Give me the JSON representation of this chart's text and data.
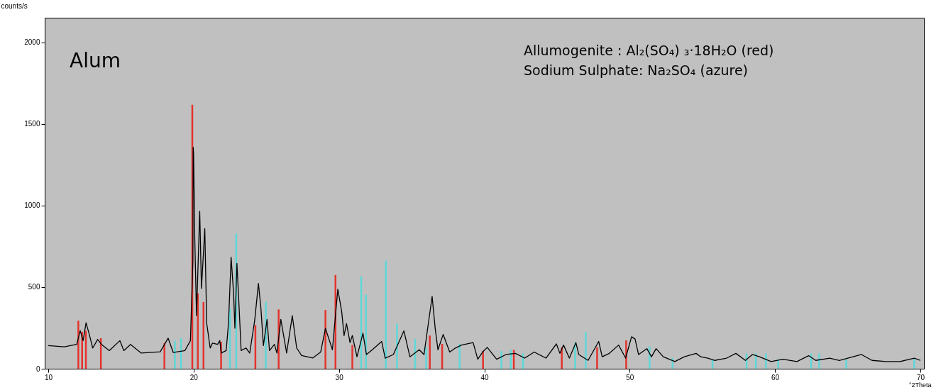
{
  "chart_data": {
    "type": "line",
    "xlabel": "°2Theta",
    "ylabel": "counts/s",
    "xlim": [
      10,
      70
    ],
    "ylim": [
      0,
      2150
    ],
    "xticks": [
      10,
      20,
      30,
      40,
      50,
      60,
      70
    ],
    "yticks": [
      0,
      500,
      1000,
      1500,
      2000
    ],
    "grid": false,
    "annotations": [
      "Alum",
      "Allumogenite : Al₂(SO₄) ₃·18H₂O    (red)",
      "Sodium Sulphate: Na₂SO₄    (azure)"
    ],
    "series": [
      {
        "type": "bar",
        "color": "#e5322c",
        "x": [
          12.07,
          12.33,
          12.59,
          13.62,
          17.99,
          19.91,
          20.29,
          20.68,
          21.89,
          24.25,
          25.85,
          29.07,
          29.76,
          30.92,
          36.25,
          37.1,
          39.91,
          42.03,
          45.33,
          47.76,
          49.76
        ],
        "values": [
          294,
          226,
          233,
          187,
          157,
          1617,
          462,
          409,
          165,
          267,
          363,
          360,
          574,
          145,
          203,
          152,
          109,
          116,
          131,
          131,
          174
        ]
      },
      {
        "type": "bar",
        "color": "#5ed8d8",
        "x": [
          18.71,
          19.13,
          22.5,
          22.93,
          24.97,
          31.53,
          31.86,
          33.23,
          33.99,
          35.24,
          36.0,
          38.3,
          41.17,
          41.82,
          42.66,
          46.25,
          46.98,
          51.37,
          52.95,
          55.7,
          58.04,
          58.68,
          59.38,
          60.22,
          62.48,
          63.04,
          64.9,
          69.58
        ],
        "values": [
          172,
          187,
          370,
          828,
          409,
          566,
          453,
          661,
          276,
          182,
          131,
          152,
          109,
          116,
          94,
          160,
          225,
          138,
          65,
          58,
          94,
          94,
          94,
          58,
          94,
          94,
          58,
          65
        ]
      },
      {
        "color": "#000000",
        "x": [
          10,
          11.1,
          11.96,
          12.2,
          12.4,
          12.6,
          12.8,
          13.06,
          13.4,
          13.66,
          14.2,
          14.93,
          15.2,
          15.66,
          16.4,
          17.7,
          18.25,
          18.6,
          19.4,
          19.78,
          19.95,
          19.97,
          20.0,
          20.08,
          20.2,
          20.42,
          20.54,
          20.77,
          20.9,
          21.14,
          21.3,
          21.65,
          21.8,
          21.9,
          22.24,
          22.4,
          22.58,
          22.75,
          22.84,
          22.98,
          23.1,
          23.27,
          23.6,
          23.86,
          24.2,
          24.46,
          24.63,
          24.8,
          24.97,
          25.05,
          25.22,
          25.56,
          25.73,
          26.0,
          26.4,
          26.79,
          27.09,
          27.43,
          28.2,
          28.74,
          29.07,
          29.55,
          29.92,
          30.19,
          30.35,
          30.52,
          30.76,
          30.92,
          31.24,
          31.65,
          31.89,
          32.29,
          32.94,
          33.18,
          33.74,
          34.47,
          34.88,
          35.52,
          35.85,
          36.41,
          36.62,
          36.81,
          37.17,
          37.62,
          37.94,
          38.43,
          39.23,
          39.55,
          39.88,
          40.2,
          40.85,
          41.49,
          42.14,
          42.78,
          43.43,
          44.24,
          44.96,
          45.2,
          45.45,
          45.85,
          46.3,
          46.5,
          47.14,
          47.87,
          48.11,
          48.6,
          49.24,
          49.72,
          50.13,
          50.37,
          50.61,
          51.18,
          51.5,
          51.82,
          52.31,
          53.11,
          53.76,
          54.57,
          54.89,
          55.38,
          55.86,
          56.67,
          57.31,
          57.96,
          58.44,
          58.93,
          59.73,
          60.54,
          61.51,
          62.31,
          62.8,
          63.77,
          64.42,
          65.95,
          66.67,
          67.64,
          68.61,
          69.58,
          70
        ],
        "values": [
          142,
          134,
          149,
          233,
          172,
          282,
          218,
          127,
          180,
          149,
          111,
          172,
          111,
          149,
          96,
          104,
          187,
          99,
          111,
          172,
          660,
          1357,
          1315,
          797,
          325,
          965,
          492,
          858,
          279,
          127,
          157,
          149,
          172,
          96,
          111,
          279,
          683,
          462,
          248,
          645,
          431,
          111,
          127,
          96,
          294,
          523,
          370,
          142,
          248,
          302,
          111,
          149,
          96,
          302,
          96,
          325,
          127,
          81,
          66,
          102,
          247,
          116,
          487,
          349,
          203,
          276,
          160,
          203,
          73,
          218,
          87,
          116,
          167,
          65,
          87,
          232,
          73,
          116,
          87,
          443,
          247,
          116,
          210,
          102,
          123,
          145,
          160,
          58,
          102,
          131,
          58,
          87,
          94,
          65,
          102,
          65,
          152,
          94,
          145,
          65,
          160,
          87,
          51,
          167,
          73,
          94,
          145,
          65,
          196,
          182,
          87,
          123,
          73,
          123,
          73,
          44,
          73,
          94,
          73,
          65,
          51,
          65,
          94,
          51,
          87,
          73,
          44,
          58,
          44,
          80,
          51,
          65,
          51,
          87,
          51,
          44,
          44,
          65,
          51
        ]
      }
    ]
  }
}
